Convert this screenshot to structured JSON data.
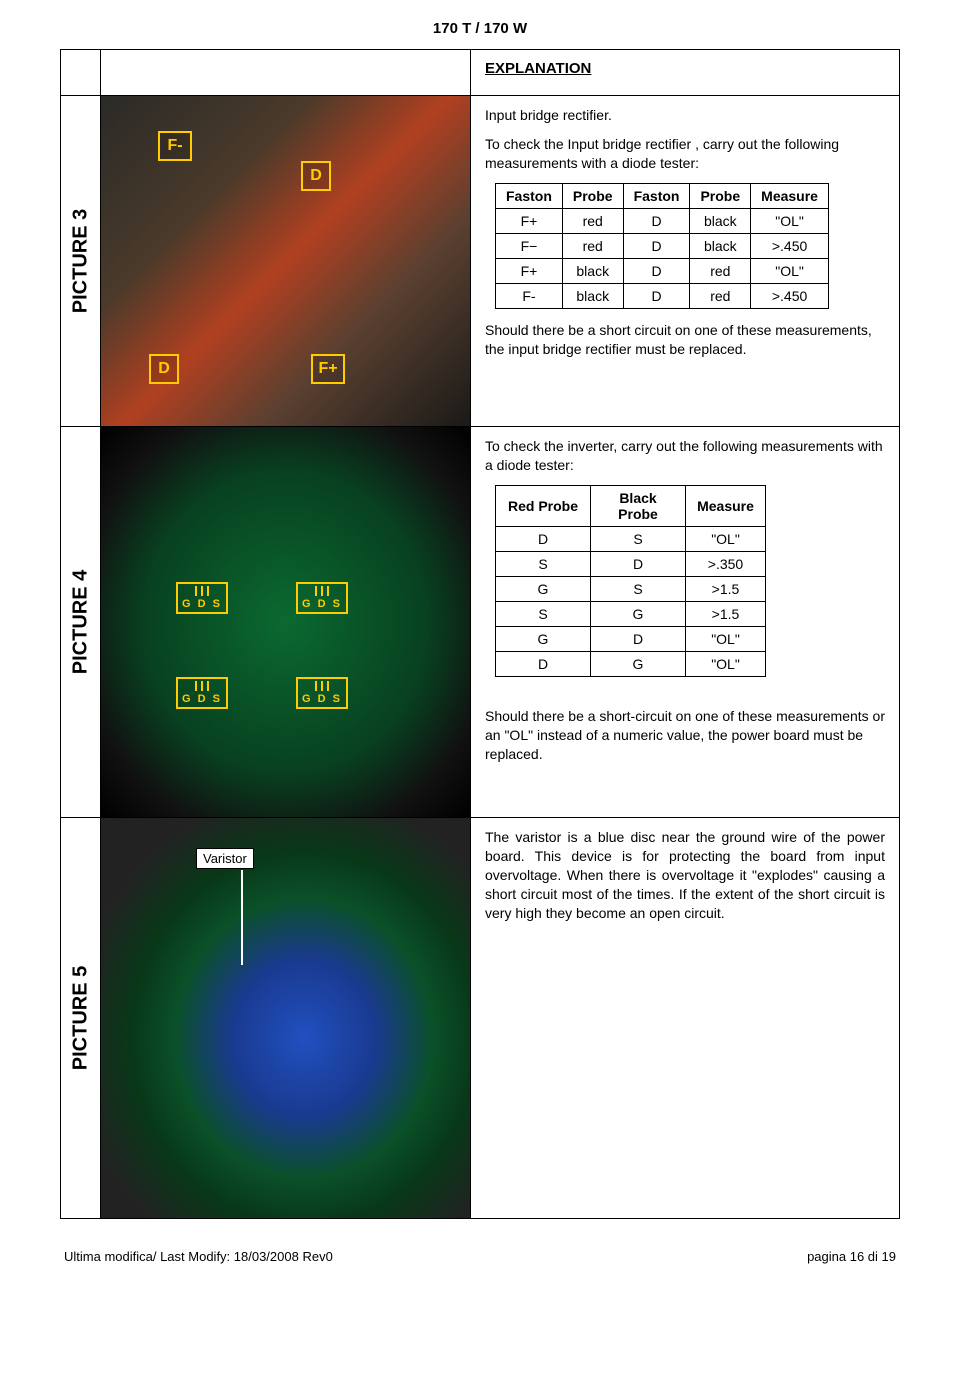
{
  "header": {
    "title": "170 T / 170 W"
  },
  "rows": {
    "r3": {
      "label": "PICTURE 3",
      "heading": "EXPLANATION",
      "intro": "Input bridge rectifier.",
      "desc": "To check the Input bridge rectifier , carry out the following measurements with a diode tester:",
      "table": {
        "headers": [
          "Faston",
          "Probe",
          "Faston",
          "Probe",
          "Measure"
        ],
        "rows": [
          [
            "F+",
            "red",
            "D",
            "black",
            "\"OL\""
          ],
          [
            "F−",
            "red",
            "D",
            "black",
            ">.450"
          ],
          [
            "F+",
            "black",
            "D",
            "red",
            "\"OL\""
          ],
          [
            "F-",
            "black",
            "D",
            "red",
            ">.450"
          ]
        ],
        "col_widths": [
          "60px",
          "55px",
          "60px",
          "55px",
          "70px"
        ]
      },
      "note": "Should there be a short circuit on one of these measurements, the input bridge rectifier must be replaced.",
      "overlays": {
        "Fminus": "F-",
        "Dtop": "D",
        "Dbot": "D",
        "Fplus": "F+"
      }
    },
    "r4": {
      "label": "PICTURE 4",
      "desc": "To check the inverter, carry out the following measurements with a diode tester:",
      "table": {
        "headers": [
          "Red Probe",
          "Black Probe",
          "Measure"
        ],
        "rows": [
          [
            "D",
            "S",
            "\"OL\""
          ],
          [
            "S",
            "D",
            ">.350"
          ],
          [
            "G",
            "S",
            ">1.5"
          ],
          [
            "S",
            "G",
            ">1.5"
          ],
          [
            "G",
            "D",
            "\"OL\""
          ],
          [
            "D",
            "G",
            "\"OL\""
          ]
        ],
        "col_widths": [
          "95px",
          "95px",
          "80px"
        ]
      },
      "note": "Should there be a short-circuit on one of these measurements or an \"OL\" instead of a numeric value, the power board must be replaced.",
      "gds": "G D S"
    },
    "r5": {
      "label": "PICTURE 5",
      "varistor_label": "Varistor",
      "text": "The varistor is a blue disc near the ground wire of the power board. This device is for protecting the board from input overvoltage. When there is overvoltage it \"explodes\" causing a short circuit most of the times. If the extent of the short circuit is very high they become an open circuit."
    }
  },
  "footer": {
    "left": "Ultima modifica/ Last Modify: 18/03/2008  Rev0",
    "right": "pagina 16 di 19"
  },
  "colors": {
    "highlight": "#ffcc00"
  }
}
